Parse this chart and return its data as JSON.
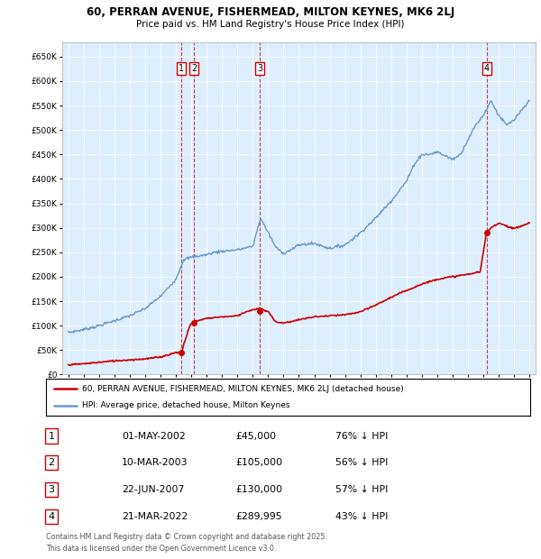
{
  "title_line1": "60, PERRAN AVENUE, FISHERMEAD, MILTON KEYNES, MK6 2LJ",
  "title_line2": "Price paid vs. HM Land Registry's House Price Index (HPI)",
  "legend_label_red": "60, PERRAN AVENUE, FISHERMEAD, MILTON KEYNES, MK6 2LJ (detached house)",
  "legend_label_blue": "HPI: Average price, detached house, Milton Keynes",
  "footer_line1": "Contains HM Land Registry data © Crown copyright and database right 2025.",
  "footer_line2": "This data is licensed under the Open Government Licence v3.0.",
  "purchases": [
    {
      "label": "1",
      "date": "2002-05-01",
      "price": 45000
    },
    {
      "label": "2",
      "date": "2003-03-10",
      "price": 105000
    },
    {
      "label": "3",
      "date": "2007-06-22",
      "price": 130000
    },
    {
      "label": "4",
      "date": "2022-03-21",
      "price": 289995
    }
  ],
  "table_dates": [
    "01-MAY-2002",
    "10-MAR-2003",
    "22-JUN-2007",
    "21-MAR-2022"
  ],
  "table_prices": [
    "£45,000",
    "£105,000",
    "£130,000",
    "£289,995"
  ],
  "table_hpi": [
    "76% ↓ HPI",
    "56% ↓ HPI",
    "57% ↓ HPI",
    "43% ↓ HPI"
  ],
  "red_color": "#cc0000",
  "blue_color": "#6699cc",
  "plot_bg_color": "#ddeeff",
  "ylim_min": 0,
  "ylim_max": 680000,
  "hpi_anchors_x": [
    1995.0,
    1996.0,
    1997.0,
    1998.0,
    1999.0,
    2000.0,
    2001.0,
    2002.0,
    2002.5,
    2003.0,
    2004.0,
    2004.5,
    2005.0,
    2006.0,
    2007.0,
    2007.5,
    2008.0,
    2008.5,
    2009.0,
    2009.5,
    2010.0,
    2011.0,
    2012.0,
    2013.0,
    2014.0,
    2015.0,
    2016.0,
    2017.0,
    2017.5,
    2018.0,
    2018.5,
    2019.0,
    2020.0,
    2020.5,
    2021.0,
    2021.5,
    2022.0,
    2022.5,
    2023.0,
    2023.5,
    2024.0,
    2024.5,
    2025.0
  ],
  "hpi_anchors_y": [
    86000,
    92000,
    100000,
    110000,
    120000,
    135000,
    160000,
    195000,
    235000,
    240000,
    245000,
    250000,
    252000,
    255000,
    262000,
    320000,
    290000,
    260000,
    248000,
    255000,
    265000,
    268000,
    258000,
    265000,
    290000,
    320000,
    355000,
    395000,
    430000,
    450000,
    450000,
    455000,
    440000,
    450000,
    480000,
    510000,
    530000,
    560000,
    530000,
    510000,
    520000,
    540000,
    560000
  ],
  "red_anchors_x": [
    1995.0,
    1996.0,
    1997.0,
    1998.0,
    1999.0,
    2000.0,
    2001.0,
    2002.0,
    2002.35,
    2002.9,
    2003.15,
    2004.0,
    2005.0,
    2006.0,
    2006.5,
    2007.0,
    2007.5,
    2008.0,
    2008.5,
    2009.0,
    2010.0,
    2011.0,
    2012.0,
    2013.0,
    2014.0,
    2015.0,
    2016.0,
    2017.0,
    2018.0,
    2019.0,
    2020.0,
    2021.0,
    2021.8,
    2022.2,
    2022.5,
    2023.0,
    2024.0,
    2025.0
  ],
  "red_anchors_y": [
    20000,
    22000,
    25000,
    28000,
    30000,
    32000,
    36000,
    45000,
    45000,
    100000,
    108000,
    115000,
    118000,
    120000,
    128000,
    132000,
    135000,
    128000,
    108000,
    105000,
    112000,
    118000,
    120000,
    122000,
    128000,
    142000,
    158000,
    172000,
    185000,
    195000,
    200000,
    205000,
    210000,
    290000,
    300000,
    310000,
    298000,
    310000
  ]
}
